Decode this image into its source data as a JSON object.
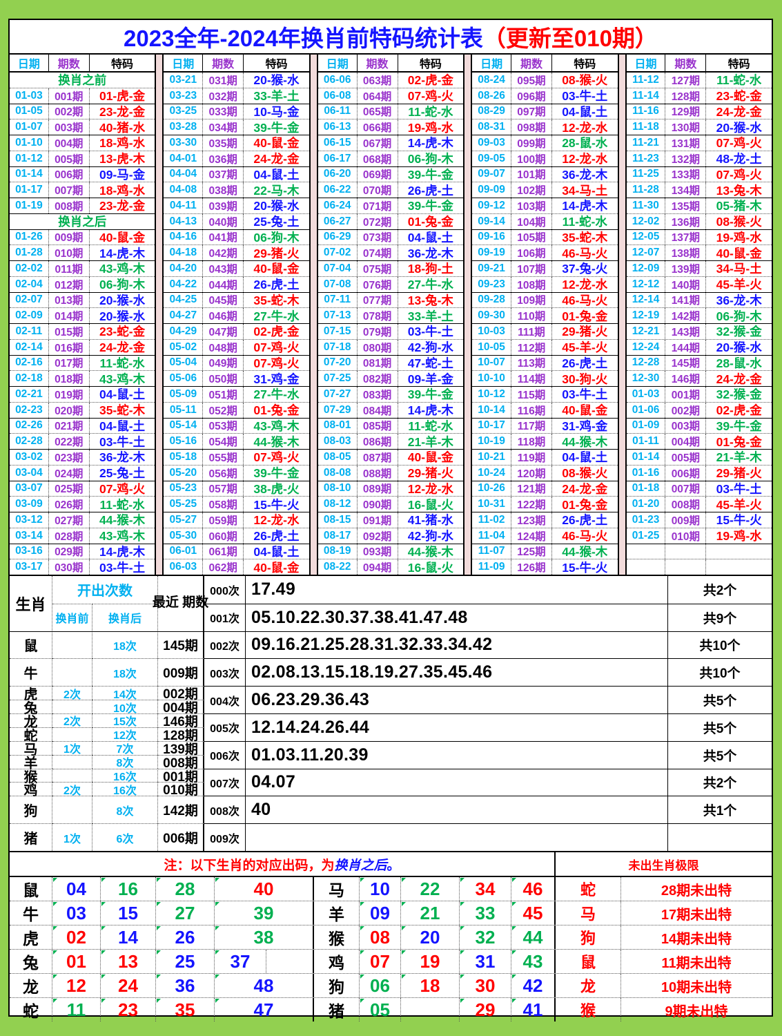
{
  "title": {
    "main": "2023全年-2024年换肖前特码统计表",
    "update": "（更新至010期）"
  },
  "table_headers": {
    "date": "日期",
    "period": "期数",
    "code": "特码"
  },
  "colors": {
    "page_green": "#92D050",
    "gap_pink": "#F2DBDB",
    "date_cyan": "#00B0F0",
    "period_purple": "#9933CC",
    "label_green": "#00B050",
    "red": "#FF0000",
    "blue": "#1414FF",
    "green": "#00B050",
    "title_blue": "#1414FF",
    "note_red": "#FF0000"
  },
  "number_colors": {
    "red": [
      "01",
      "02",
      "07",
      "08",
      "12",
      "13",
      "18",
      "19",
      "23",
      "24",
      "29",
      "30",
      "34",
      "35",
      "40",
      "45",
      "46"
    ],
    "blue": [
      "03",
      "04",
      "09",
      "10",
      "14",
      "15",
      "20",
      "25",
      "26",
      "31",
      "36",
      "37",
      "41",
      "42",
      "47",
      "48"
    ],
    "green": [
      "05",
      "06",
      "11",
      "16",
      "17",
      "21",
      "22",
      "27",
      "28",
      "32",
      "33",
      "38",
      "39",
      "43",
      "44",
      "49"
    ]
  },
  "groups": [
    [
      "换肖之前",
      [
        "01-03",
        "001期",
        "01",
        "虎",
        "金"
      ],
      [
        "01-05",
        "002期",
        "23",
        "龙",
        "金"
      ],
      [
        "01-07",
        "003期",
        "40",
        "猪",
        "水"
      ],
      [
        "01-10",
        "004期",
        "18",
        "鸡",
        "水"
      ],
      [
        "01-12",
        "005期",
        "13",
        "虎",
        "木"
      ],
      [
        "01-14",
        "006期",
        "09",
        "马",
        "金"
      ],
      [
        "01-17",
        "007期",
        "18",
        "鸡",
        "水"
      ],
      [
        "01-19",
        "008期",
        "23",
        "龙",
        "金"
      ],
      "换肖之后",
      [
        "01-26",
        "009期",
        "40",
        "鼠",
        "金"
      ],
      [
        "01-28",
        "010期",
        "14",
        "虎",
        "木"
      ],
      [
        "02-02",
        "011期",
        "43",
        "鸡",
        "木"
      ],
      [
        "02-04",
        "012期",
        "06",
        "狗",
        "木"
      ],
      [
        "02-07",
        "013期",
        "20",
        "猴",
        "水"
      ],
      [
        "02-09",
        "014期",
        "20",
        "猴",
        "水"
      ],
      [
        "02-11",
        "015期",
        "23",
        "蛇",
        "金"
      ],
      [
        "02-14",
        "016期",
        "24",
        "龙",
        "金"
      ],
      [
        "02-16",
        "017期",
        "11",
        "蛇",
        "水"
      ],
      [
        "02-18",
        "018期",
        "43",
        "鸡",
        "木"
      ],
      [
        "02-21",
        "019期",
        "04",
        "鼠",
        "土"
      ],
      [
        "02-23",
        "020期",
        "35",
        "蛇",
        "木"
      ],
      [
        "02-26",
        "021期",
        "04",
        "鼠",
        "土"
      ],
      [
        "02-28",
        "022期",
        "03",
        "牛",
        "土"
      ],
      [
        "03-02",
        "023期",
        "36",
        "龙",
        "木"
      ],
      [
        "03-04",
        "024期",
        "25",
        "兔",
        "土"
      ],
      [
        "03-07",
        "025期",
        "07",
        "鸡",
        "火"
      ],
      [
        "03-09",
        "026期",
        "11",
        "蛇",
        "水"
      ],
      [
        "03-12",
        "027期",
        "44",
        "猴",
        "木"
      ],
      [
        "03-14",
        "028期",
        "43",
        "鸡",
        "木"
      ],
      [
        "03-16",
        "029期",
        "14",
        "虎",
        "木"
      ],
      [
        "03-17",
        "030期",
        "03",
        "牛",
        "土"
      ]
    ],
    [
      [
        "03-21",
        "031期",
        "20",
        "猴",
        "水"
      ],
      [
        "03-23",
        "032期",
        "33",
        "羊",
        "土"
      ],
      [
        "03-25",
        "033期",
        "10",
        "马",
        "金"
      ],
      [
        "03-28",
        "034期",
        "39",
        "牛",
        "金"
      ],
      [
        "03-30",
        "035期",
        "40",
        "鼠",
        "金"
      ],
      [
        "04-01",
        "036期",
        "24",
        "龙",
        "金"
      ],
      [
        "04-04",
        "037期",
        "04",
        "鼠",
        "土"
      ],
      [
        "04-08",
        "038期",
        "22",
        "马",
        "木"
      ],
      [
        "04-11",
        "039期",
        "20",
        "猴",
        "水"
      ],
      [
        "04-13",
        "040期",
        "25",
        "兔",
        "土"
      ],
      [
        "04-16",
        "041期",
        "06",
        "狗",
        "木"
      ],
      [
        "04-18",
        "042期",
        "29",
        "猪",
        "火"
      ],
      [
        "04-20",
        "043期",
        "40",
        "鼠",
        "金"
      ],
      [
        "04-22",
        "044期",
        "26",
        "虎",
        "土"
      ],
      [
        "04-25",
        "045期",
        "35",
        "蛇",
        "木"
      ],
      [
        "04-27",
        "046期",
        "27",
        "牛",
        "水"
      ],
      [
        "04-29",
        "047期",
        "02",
        "虎",
        "金"
      ],
      [
        "05-02",
        "048期",
        "07",
        "鸡",
        "火"
      ],
      [
        "05-04",
        "049期",
        "07",
        "鸡",
        "火"
      ],
      [
        "05-06",
        "050期",
        "31",
        "鸡",
        "金"
      ],
      [
        "05-09",
        "051期",
        "27",
        "牛",
        "水"
      ],
      [
        "05-11",
        "052期",
        "01",
        "兔",
        "金"
      ],
      [
        "05-14",
        "053期",
        "43",
        "鸡",
        "木"
      ],
      [
        "05-16",
        "054期",
        "44",
        "猴",
        "木"
      ],
      [
        "05-18",
        "055期",
        "07",
        "鸡",
        "火"
      ],
      [
        "05-20",
        "056期",
        "39",
        "牛",
        "金"
      ],
      [
        "05-23",
        "057期",
        "38",
        "虎",
        "火"
      ],
      [
        "05-25",
        "058期",
        "15",
        "牛",
        "火"
      ],
      [
        "05-27",
        "059期",
        "12",
        "龙",
        "水"
      ],
      [
        "05-30",
        "060期",
        "26",
        "虎",
        "土"
      ],
      [
        "06-01",
        "061期",
        "04",
        "鼠",
        "土"
      ],
      [
        "06-03",
        "062期",
        "40",
        "鼠",
        "金"
      ]
    ],
    [
      [
        "06-06",
        "063期",
        "02",
        "虎",
        "金"
      ],
      [
        "06-08",
        "064期",
        "07",
        "鸡",
        "火"
      ],
      [
        "06-11",
        "065期",
        "11",
        "蛇",
        "水"
      ],
      [
        "06-13",
        "066期",
        "19",
        "鸡",
        "水"
      ],
      [
        "06-15",
        "067期",
        "14",
        "虎",
        "木"
      ],
      [
        "06-17",
        "068期",
        "06",
        "狗",
        "木"
      ],
      [
        "06-20",
        "069期",
        "39",
        "牛",
        "金"
      ],
      [
        "06-22",
        "070期",
        "26",
        "虎",
        "土"
      ],
      [
        "06-24",
        "071期",
        "39",
        "牛",
        "金"
      ],
      [
        "06-27",
        "072期",
        "01",
        "兔",
        "金"
      ],
      [
        "06-29",
        "073期",
        "04",
        "鼠",
        "土"
      ],
      [
        "07-02",
        "074期",
        "36",
        "龙",
        "木"
      ],
      [
        "07-04",
        "075期",
        "18",
        "狗",
        "土"
      ],
      [
        "07-08",
        "076期",
        "27",
        "牛",
        "水"
      ],
      [
        "07-11",
        "077期",
        "13",
        "兔",
        "木"
      ],
      [
        "07-13",
        "078期",
        "33",
        "羊",
        "土"
      ],
      [
        "07-15",
        "079期",
        "03",
        "牛",
        "土"
      ],
      [
        "07-18",
        "080期",
        "42",
        "狗",
        "水"
      ],
      [
        "07-20",
        "081期",
        "47",
        "蛇",
        "土"
      ],
      [
        "07-25",
        "082期",
        "09",
        "羊",
        "金"
      ],
      [
        "07-27",
        "083期",
        "39",
        "牛",
        "金"
      ],
      [
        "07-29",
        "084期",
        "14",
        "虎",
        "木"
      ],
      [
        "08-01",
        "085期",
        "11",
        "蛇",
        "水"
      ],
      [
        "08-03",
        "086期",
        "21",
        "羊",
        "木"
      ],
      [
        "08-05",
        "087期",
        "40",
        "鼠",
        "金"
      ],
      [
        "08-08",
        "088期",
        "29",
        "猪",
        "火"
      ],
      [
        "08-10",
        "089期",
        "12",
        "龙",
        "水"
      ],
      [
        "08-12",
        "090期",
        "16",
        "鼠",
        "火"
      ],
      [
        "08-15",
        "091期",
        "41",
        "猪",
        "水"
      ],
      [
        "08-17",
        "092期",
        "42",
        "狗",
        "水"
      ],
      [
        "08-19",
        "093期",
        "44",
        "猴",
        "木"
      ],
      [
        "08-22",
        "094期",
        "16",
        "鼠",
        "火"
      ]
    ],
    [
      [
        "08-24",
        "095期",
        "08",
        "猴",
        "火"
      ],
      [
        "08-26",
        "096期",
        "03",
        "牛",
        "土"
      ],
      [
        "08-29",
        "097期",
        "04",
        "鼠",
        "土"
      ],
      [
        "08-31",
        "098期",
        "12",
        "龙",
        "水"
      ],
      [
        "09-03",
        "099期",
        "28",
        "鼠",
        "水"
      ],
      [
        "09-05",
        "100期",
        "12",
        "龙",
        "水"
      ],
      [
        "09-07",
        "101期",
        "36",
        "龙",
        "木"
      ],
      [
        "09-09",
        "102期",
        "34",
        "马",
        "土"
      ],
      [
        "09-12",
        "103期",
        "14",
        "虎",
        "木"
      ],
      [
        "09-14",
        "104期",
        "11",
        "蛇",
        "水"
      ],
      [
        "09-16",
        "105期",
        "35",
        "蛇",
        "木"
      ],
      [
        "09-19",
        "106期",
        "46",
        "马",
        "火"
      ],
      [
        "09-21",
        "107期",
        "37",
        "兔",
        "火"
      ],
      [
        "09-23",
        "108期",
        "12",
        "龙",
        "水"
      ],
      [
        "09-28",
        "109期",
        "46",
        "马",
        "火"
      ],
      [
        "09-30",
        "110期",
        "01",
        "兔",
        "金"
      ],
      [
        "10-03",
        "111期",
        "29",
        "猪",
        "火"
      ],
      [
        "10-05",
        "112期",
        "45",
        "羊",
        "火"
      ],
      [
        "10-07",
        "113期",
        "26",
        "虎",
        "土"
      ],
      [
        "10-10",
        "114期",
        "30",
        "狗",
        "火"
      ],
      [
        "10-12",
        "115期",
        "03",
        "牛",
        "土"
      ],
      [
        "10-14",
        "116期",
        "40",
        "鼠",
        "金"
      ],
      [
        "10-17",
        "117期",
        "31",
        "鸡",
        "金"
      ],
      [
        "10-19",
        "118期",
        "44",
        "猴",
        "木"
      ],
      [
        "10-21",
        "119期",
        "04",
        "鼠",
        "土"
      ],
      [
        "10-24",
        "120期",
        "08",
        "猴",
        "火"
      ],
      [
        "10-26",
        "121期",
        "24",
        "龙",
        "金"
      ],
      [
        "10-31",
        "122期",
        "01",
        "兔",
        "金"
      ],
      [
        "11-02",
        "123期",
        "26",
        "虎",
        "土"
      ],
      [
        "11-04",
        "124期",
        "46",
        "马",
        "火"
      ],
      [
        "11-07",
        "125期",
        "44",
        "猴",
        "木"
      ],
      [
        "11-09",
        "126期",
        "15",
        "牛",
        "火"
      ]
    ],
    [
      [
        "11-12",
        "127期",
        "11",
        "蛇",
        "水"
      ],
      [
        "11-14",
        "128期",
        "23",
        "蛇",
        "金"
      ],
      [
        "11-16",
        "129期",
        "24",
        "龙",
        "金"
      ],
      [
        "11-18",
        "130期",
        "20",
        "猴",
        "水"
      ],
      [
        "11-21",
        "131期",
        "07",
        "鸡",
        "火"
      ],
      [
        "11-23",
        "132期",
        "48",
        "龙",
        "土"
      ],
      [
        "11-25",
        "133期",
        "07",
        "鸡",
        "火"
      ],
      [
        "11-28",
        "134期",
        "13",
        "兔",
        "木"
      ],
      [
        "11-30",
        "135期",
        "05",
        "猪",
        "木"
      ],
      [
        "12-02",
        "136期",
        "08",
        "猴",
        "火"
      ],
      [
        "12-05",
        "137期",
        "19",
        "鸡",
        "水"
      ],
      [
        "12-07",
        "138期",
        "40",
        "鼠",
        "金"
      ],
      [
        "12-09",
        "139期",
        "34",
        "马",
        "土"
      ],
      [
        "12-12",
        "140期",
        "45",
        "羊",
        "火"
      ],
      [
        "12-14",
        "141期",
        "36",
        "龙",
        "木"
      ],
      [
        "12-19",
        "142期",
        "06",
        "狗",
        "木"
      ],
      [
        "12-21",
        "143期",
        "32",
        "猴",
        "金"
      ],
      [
        "12-24",
        "144期",
        "20",
        "猴",
        "水"
      ],
      [
        "12-28",
        "145期",
        "28",
        "鼠",
        "水"
      ],
      [
        "12-30",
        "146期",
        "24",
        "龙",
        "金"
      ],
      [
        "01-03",
        "001期",
        "32",
        "猴",
        "金"
      ],
      [
        "01-06",
        "002期",
        "02",
        "虎",
        "金"
      ],
      [
        "01-09",
        "003期",
        "39",
        "牛",
        "金"
      ],
      [
        "01-11",
        "004期",
        "01",
        "兔",
        "金"
      ],
      [
        "01-14",
        "005期",
        "21",
        "羊",
        "木"
      ],
      [
        "01-16",
        "006期",
        "29",
        "猪",
        "火"
      ],
      [
        "01-18",
        "007期",
        "03",
        "牛",
        "土"
      ],
      [
        "01-20",
        "008期",
        "45",
        "羊",
        "火"
      ],
      [
        "01-23",
        "009期",
        "15",
        "牛",
        "火"
      ],
      [
        "01-25",
        "010期",
        "19",
        "鸡",
        "水"
      ],
      null,
      null
    ]
  ],
  "stats": {
    "zodiac_header": "生肖",
    "count_header": "开出次数",
    "before_header": "换肖前",
    "after_header": "换肖后",
    "recent_header": "最近 期数",
    "rows": [
      {
        "z": "鼠",
        "b": "",
        "a": "18次",
        "r": "145期",
        "h": 2
      },
      {
        "z": "牛",
        "b": "",
        "a": "18次",
        "r": "009期",
        "h": 2
      },
      {
        "z": "虎",
        "b": "2次",
        "a": "14次",
        "r": "002期",
        "h": 1
      },
      {
        "z": "兔",
        "b": "",
        "a": "10次",
        "r": "004期",
        "h": 1
      },
      {
        "z": "龙",
        "b": "2次",
        "a": "15次",
        "r": "146期",
        "h": 1
      },
      {
        "z": "蛇",
        "b": "",
        "a": "12次",
        "r": "128期",
        "h": 1
      },
      {
        "z": "马",
        "b": "1次",
        "a": "7次",
        "r": "139期",
        "h": 1
      },
      {
        "z": "羊",
        "b": "",
        "a": "8次",
        "r": "008期",
        "h": 1
      },
      {
        "z": "猴",
        "b": "",
        "a": "16次",
        "r": "001期",
        "h": 1
      },
      {
        "z": "鸡",
        "b": "2次",
        "a": "16次",
        "r": "010期",
        "h": 1
      },
      {
        "z": "狗",
        "b": "",
        "a": "8次",
        "r": "142期",
        "h": 2
      },
      {
        "z": "猪",
        "b": "1次",
        "a": "6次",
        "r": "006期",
        "h": 2
      }
    ],
    "times": [
      {
        "label": "000次",
        "numbers": "17.49",
        "total": "共2个"
      },
      {
        "label": "001次",
        "numbers": "05.10.22.30.37.38.41.47.48",
        "total": "共9个"
      },
      {
        "label": "002次",
        "numbers": "09.16.21.25.28.31.32.33.34.42",
        "total": "共10个"
      },
      {
        "label": "003次",
        "numbers": "02.08.13.15.18.19.27.35.45.46",
        "total": "共10个"
      },
      {
        "label": "004次",
        "numbers": "06.23.29.36.43",
        "total": "共5个"
      },
      {
        "label": "005次",
        "numbers": "12.14.24.26.44",
        "total": "共5个"
      },
      {
        "label": "006次",
        "numbers": "01.03.11.20.39",
        "total": "共5个"
      },
      {
        "label": "007次",
        "numbers": "04.07",
        "total": "共2个"
      },
      {
        "label": "008次",
        "numbers": "40",
        "total": "共1个"
      },
      {
        "label": "009次",
        "numbers": "",
        "total": ""
      }
    ]
  },
  "bottom": {
    "note_prefix": "注：以下生肖的对应出码，为",
    "note_highlight": "换肖之后",
    "note_suffix": "。",
    "extreme_header": "未出生肖极限",
    "left_rows": [
      {
        "z": "鼠",
        "n": [
          "04",
          "16",
          "28",
          "40"
        ],
        "split": false
      },
      {
        "z": "牛",
        "n": [
          "03",
          "15",
          "27",
          "39"
        ],
        "split": false
      },
      {
        "z": "虎",
        "n": [
          "02",
          "14",
          "26",
          "38"
        ],
        "split": false
      },
      {
        "z": "兔",
        "n": [
          "01",
          "13",
          "25",
          "37"
        ],
        "split": true
      },
      {
        "z": "龙",
        "n": [
          "12",
          "24",
          "36",
          "48"
        ],
        "split": false
      },
      {
        "z": "蛇",
        "n": [
          "11",
          "23",
          "35",
          "47"
        ],
        "split": false
      }
    ],
    "right_rows": [
      {
        "z": "马",
        "n": [
          "10",
          "22",
          "34",
          "46"
        ]
      },
      {
        "z": "羊",
        "n": [
          "09",
          "21",
          "33",
          "45"
        ]
      },
      {
        "z": "猴",
        "n": [
          "08",
          "20",
          "32",
          "44"
        ]
      },
      {
        "z": "鸡",
        "n": [
          "07",
          "19",
          "31",
          "43"
        ]
      },
      {
        "z": "狗",
        "n": [
          "06",
          "18",
          "30",
          "42"
        ]
      },
      {
        "z": "猪",
        "n": [
          "05",
          "",
          "29",
          "41"
        ]
      }
    ],
    "extremes": [
      {
        "z": "蛇",
        "t": "28期未出特"
      },
      {
        "z": "马",
        "t": "17期未出特"
      },
      {
        "z": "狗",
        "t": "14期未出特"
      },
      {
        "z": "鼠",
        "t": "11期未出特"
      },
      {
        "z": "龙",
        "t": "10期未出特"
      },
      {
        "z": "猴",
        "t": "9期未出特"
      }
    ]
  }
}
